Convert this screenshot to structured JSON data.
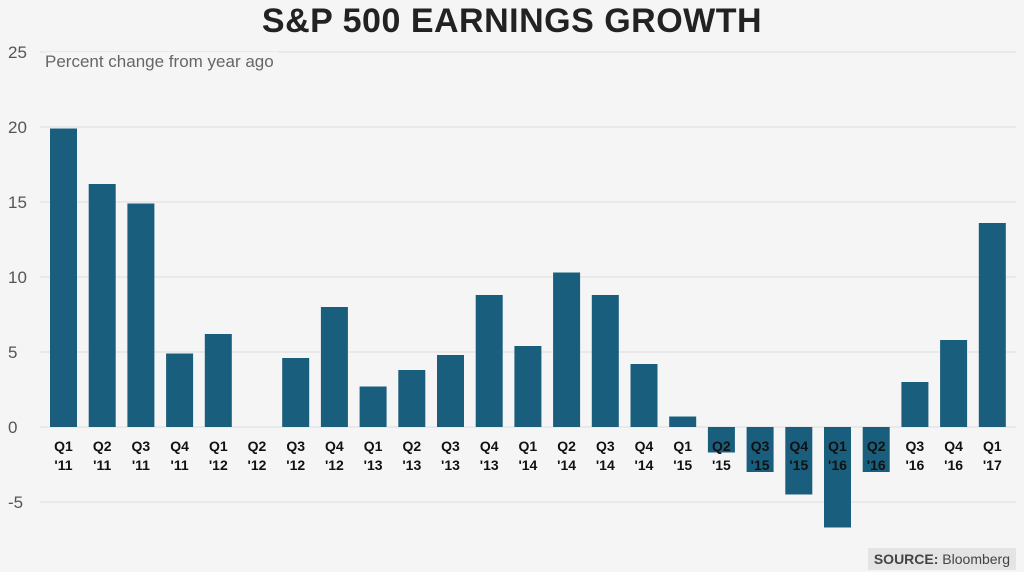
{
  "header": {
    "title": "S&P 500 EARNINGS GROWTH",
    "subtitle": "Percent change from year ago"
  },
  "footer": {
    "source_label": "SOURCE:",
    "source_value": "Bloomberg"
  },
  "colors": {
    "bar": "#1a5e7d",
    "grid": "#dddddd",
    "background": "#f5f5f5",
    "tick_text": "#555555",
    "category_text": "#111111"
  },
  "chart_data": {
    "type": "bar",
    "title": "S&P 500 EARNINGS GROWTH",
    "subtitle": "Percent change from year ago",
    "xlabel": "",
    "ylabel": "",
    "ylim": [
      -10,
      25
    ],
    "yticks": [
      25,
      20,
      15,
      10,
      5,
      0,
      -5
    ],
    "grid": true,
    "legend": "none",
    "categories": [
      [
        "Q1",
        "'11"
      ],
      [
        "Q2",
        "'11"
      ],
      [
        "Q3",
        "'11"
      ],
      [
        "Q4",
        "'11"
      ],
      [
        "Q1",
        "'12"
      ],
      [
        "Q2",
        "'12"
      ],
      [
        "Q3",
        "'12"
      ],
      [
        "Q4",
        "'12"
      ],
      [
        "Q1",
        "'13"
      ],
      [
        "Q2",
        "'13"
      ],
      [
        "Q3",
        "'13"
      ],
      [
        "Q4",
        "'13"
      ],
      [
        "Q1",
        "'14"
      ],
      [
        "Q2",
        "'14"
      ],
      [
        "Q3",
        "'14"
      ],
      [
        "Q4",
        "'14"
      ],
      [
        "Q1",
        "'15"
      ],
      [
        "Q2",
        "'15"
      ],
      [
        "Q3",
        "'15"
      ],
      [
        "Q4",
        "'15"
      ],
      [
        "Q1",
        "'16"
      ],
      [
        "Q2",
        "'16"
      ],
      [
        "Q3",
        "'16"
      ],
      [
        "Q4",
        "'16"
      ],
      [
        "Q1",
        "'17"
      ]
    ],
    "values": [
      19.9,
      16.2,
      14.9,
      4.9,
      6.2,
      0,
      4.6,
      8.0,
      2.7,
      3.8,
      4.8,
      8.8,
      5.4,
      10.3,
      8.8,
      4.2,
      0.7,
      -1.7,
      -3.0,
      -4.5,
      -6.7,
      -3.0,
      3.0,
      5.8,
      13.6
    ]
  }
}
